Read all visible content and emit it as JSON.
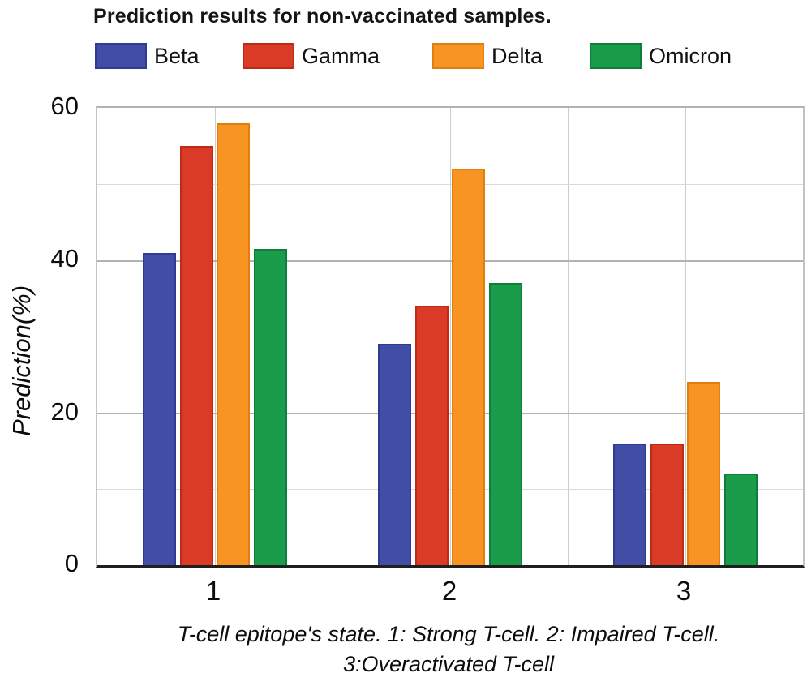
{
  "figure": {
    "title": "Prediction results for non-vaccinated samples.",
    "caption_line1": "T-cell epitope's state. 1: Strong T-cell. 2: Impaired T-cell.",
    "caption_line2": "3:Overactivated T-cell"
  },
  "chart_data": {
    "type": "bar",
    "title": "Prediction results for non-vaccinated samples.",
    "categories": [
      "1",
      "2",
      "3"
    ],
    "series": [
      {
        "name": "Beta",
        "color": "#404EA5",
        "border_color": "#2F3B93",
        "values": [
          41,
          29,
          16
        ]
      },
      {
        "name": "Gamma",
        "color": "#D93B27",
        "border_color": "#BF2A16",
        "values": [
          55,
          34,
          16
        ]
      },
      {
        "name": "Delta",
        "color": "#F79422",
        "border_color": "#E07F0F",
        "values": [
          58,
          52,
          24
        ]
      },
      {
        "name": "Omicron",
        "color": "#1A9C4B",
        "border_color": "#0D7F3B",
        "values": [
          41.5,
          37,
          12
        ]
      }
    ],
    "ylabel": "Prediction(%)",
    "xlabel": "T-cell epitope's state. 1: Strong T-cell. 2: Impaired T-cell. 3:Overactivated T-cell",
    "ylim": [
      0,
      60
    ],
    "ytick_labels": [
      "0",
      "20",
      "40",
      "60"
    ],
    "gridline_step": 10,
    "grid": "on",
    "legend_position": "top"
  }
}
